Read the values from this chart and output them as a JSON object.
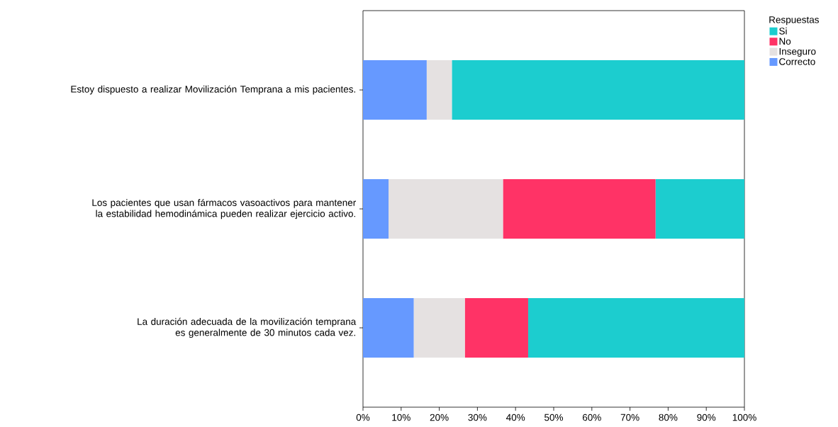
{
  "chart_data": {
    "type": "bar",
    "orientation": "horizontal",
    "stacked": true,
    "categories": [
      "Estoy dispuesto a realizar Movilización Temprana a mis pacientes.",
      "Los pacientes que usan fármacos vasoactivos para mantener la estabilidad hemodinámica pueden realizar ejercicio activo.",
      "La duración adecuada de la movilización temprana es generalmente de 30 minutos cada vez."
    ],
    "series": [
      {
        "name": "Correcto",
        "color": "#6699ff",
        "values": [
          16.7,
          6.7,
          13.3
        ]
      },
      {
        "name": "Inseguro",
        "color": "#e5e1e1",
        "values": [
          6.6,
          30.0,
          13.4
        ]
      },
      {
        "name": "No",
        "color": "#ff3366",
        "values": [
          0,
          40.0,
          16.6
        ]
      },
      {
        "name": "Si",
        "color": "#1ccdcf",
        "values": [
          76.7,
          23.3,
          56.7
        ]
      }
    ],
    "legend_title": "Respuestas",
    "legend": "top right",
    "xlim": [
      0,
      100
    ],
    "xticks": [
      {
        "value": 0,
        "label": "0%"
      },
      {
        "value": 10,
        "label": "10%"
      },
      {
        "value": 20,
        "label": "20%"
      },
      {
        "value": 30,
        "label": "30%"
      },
      {
        "value": 40,
        "label": "40%"
      },
      {
        "value": 50,
        "label": "50%"
      },
      {
        "value": 60,
        "label": "60%"
      },
      {
        "value": 70,
        "label": "70%"
      },
      {
        "value": 80,
        "label": "80%"
      },
      {
        "value": 90,
        "label": "90%"
      },
      {
        "value": 100,
        "label": "100%"
      }
    ]
  }
}
